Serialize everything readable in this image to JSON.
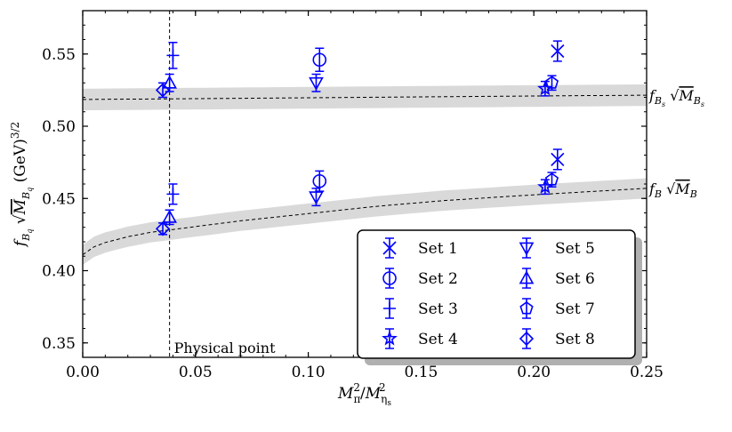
{
  "chart_data": {
    "type": "scatter",
    "xlabel": "M_π² / M_ηs²",
    "ylabel": "f_Bq √M_Bq (GeV)^3/2",
    "xlim": [
      0.0,
      0.25
    ],
    "ylim": [
      0.34,
      0.58
    ],
    "xticks": [
      "0.00",
      "0.05",
      "0.10",
      "0.15",
      "0.20",
      "0.25"
    ],
    "yticks": [
      "0.35",
      "0.40",
      "0.45",
      "0.50",
      "0.55"
    ],
    "grid": false,
    "legend_position": "bottom-right",
    "annotation": {
      "text": "Physical point",
      "x": 0.0385
    },
    "fit_curves": [
      {
        "label_main": "f",
        "label_sub": "Bs",
        "label_root": "M",
        "label_root_sub": "Bs",
        "x": [
          0.0,
          0.25
        ],
        "y": [
          0.5185,
          0.5215
        ],
        "band": 0.0075
      },
      {
        "label_main": "f",
        "label_sub": "B",
        "label_root": "M",
        "label_root_sub": "B",
        "x": [
          0.0,
          0.005,
          0.01,
          0.02,
          0.03,
          0.04,
          0.05,
          0.07,
          0.1,
          0.13,
          0.16,
          0.2,
          0.25
        ],
        "y": [
          0.411,
          0.4165,
          0.4195,
          0.4235,
          0.4265,
          0.4285,
          0.4305,
          0.4345,
          0.4395,
          0.4445,
          0.4485,
          0.4525,
          0.457
        ],
        "band": 0.007
      }
    ],
    "series": [
      {
        "name": "Set 1",
        "marker": "x",
        "points": [
          {
            "x": 0.2105,
            "y": 0.552,
            "err": 0.007
          },
          {
            "x": 0.2105,
            "y": 0.477,
            "err": 0.007
          }
        ]
      },
      {
        "name": "Set 2",
        "marker": "circle",
        "points": [
          {
            "x": 0.105,
            "y": 0.546,
            "err": 0.008
          },
          {
            "x": 0.105,
            "y": 0.462,
            "err": 0.007
          }
        ]
      },
      {
        "name": "Set 3",
        "marker": "plus",
        "points": [
          {
            "x": 0.04,
            "y": 0.549,
            "err": 0.009
          },
          {
            "x": 0.04,
            "y": 0.453,
            "err": 0.007
          }
        ]
      },
      {
        "name": "Set 4",
        "marker": "star",
        "points": [
          {
            "x": 0.205,
            "y": 0.526,
            "err": 0.005
          },
          {
            "x": 0.205,
            "y": 0.458,
            "err": 0.005
          }
        ]
      },
      {
        "name": "Set 5",
        "marker": "triangle-down",
        "points": [
          {
            "x": 0.1035,
            "y": 0.53,
            "err": 0.006
          },
          {
            "x": 0.1035,
            "y": 0.451,
            "err": 0.006
          }
        ]
      },
      {
        "name": "Set 6",
        "marker": "triangle-up",
        "points": [
          {
            "x": 0.0385,
            "y": 0.53,
            "err": 0.006
          },
          {
            "x": 0.0385,
            "y": 0.437,
            "err": 0.005
          }
        ]
      },
      {
        "name": "Set 7",
        "marker": "pentagon",
        "points": [
          {
            "x": 0.208,
            "y": 0.53,
            "err": 0.005
          },
          {
            "x": 0.208,
            "y": 0.463,
            "err": 0.005
          }
        ]
      },
      {
        "name": "Set 8",
        "marker": "diamond",
        "points": [
          {
            "x": 0.0355,
            "y": 0.525,
            "err": 0.005
          },
          {
            "x": 0.0355,
            "y": 0.429,
            "err": 0.004
          }
        ]
      }
    ],
    "colors": {
      "markers": "#0000ff",
      "band": "#d9d9d9",
      "axes": "#000000"
    }
  }
}
